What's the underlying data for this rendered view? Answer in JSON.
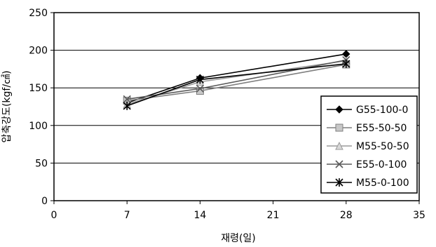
{
  "chart_data": {
    "type": "line",
    "xlabel": "재령(일)",
    "ylabel": "압축강도(kgf/㎠)",
    "xlim": [
      0,
      35
    ],
    "ylim": [
      0,
      250
    ],
    "xticks": [
      0,
      7,
      14,
      21,
      28,
      35
    ],
    "yticks": [
      0,
      50,
      100,
      150,
      200,
      250
    ],
    "grid": "horizontal",
    "legend_position": "right",
    "series": [
      {
        "name": "G55-100-0",
        "marker": "diamond",
        "color": "#000000",
        "x": [
          7,
          14,
          28
        ],
        "y": [
          130,
          163,
          195
        ]
      },
      {
        "name": "E55-50-50",
        "marker": "square",
        "color": "#7f7f7f",
        "x": [
          7,
          14,
          28
        ],
        "y": [
          133,
          146,
          181
        ]
      },
      {
        "name": "M55-50-50",
        "marker": "triangle",
        "color": "#9a9a9a",
        "x": [
          7,
          14,
          28
        ],
        "y": [
          128,
          158,
          186
        ]
      },
      {
        "name": "E55-0-100",
        "marker": "x",
        "color": "#5a5a5a",
        "x": [
          7,
          14,
          28
        ],
        "y": [
          135,
          149,
          187
        ]
      },
      {
        "name": "M55-0-100",
        "marker": "asterisk",
        "color": "#000000",
        "x": [
          7,
          14,
          28
        ],
        "y": [
          126,
          161,
          182
        ]
      }
    ]
  }
}
